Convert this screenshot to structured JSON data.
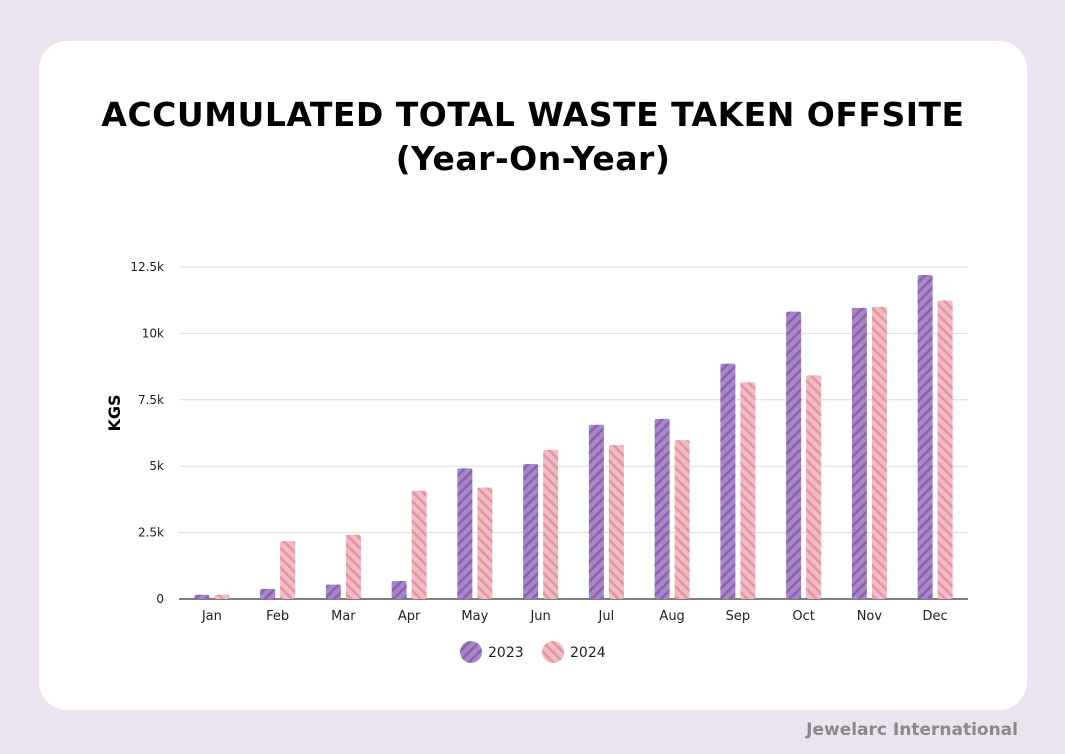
{
  "title_line1": "ACCUMULATED TOTAL WASTE TAKEN OFFSITE",
  "title_line2": "(Year-On-Year)",
  "footer": "Jewelarc International",
  "colors": {
    "series_2023": "#a985c9",
    "series_2023_stripe": "#8a63ad",
    "series_2024": "#f3bcc4",
    "series_2024_stripe": "#e295a2",
    "gridline": "#dddddd",
    "axis": "#333333"
  },
  "chart_data": {
    "type": "bar",
    "title": "ACCUMULATED TOTAL WASTE TAKEN OFFSITE (Year-On-Year)",
    "xlabel": "",
    "ylabel": "KGS",
    "categories": [
      "Jan",
      "Feb",
      "Mar",
      "Apr",
      "May",
      "Jun",
      "Jul",
      "Aug",
      "Sep",
      "Oct",
      "Nov",
      "Dec"
    ],
    "series": [
      {
        "name": "2023",
        "values": [
          160,
          380,
          540,
          680,
          4920,
          5080,
          6560,
          6780,
          8860,
          10820,
          10960,
          12200
        ]
      },
      {
        "name": "2024",
        "values": [
          160,
          2180,
          2420,
          4080,
          4200,
          5620,
          5800,
          5980,
          8160,
          8420,
          11000,
          11240
        ]
      }
    ],
    "ylim": [
      0,
      12500
    ],
    "yticks": [
      0,
      2500,
      5000,
      7500,
      10000,
      12500
    ],
    "ytick_labels": [
      "0",
      "2.5k",
      "5k",
      "7.5k",
      "10k",
      "12.5k"
    ],
    "grid": true,
    "legend_position": "bottom-center"
  }
}
